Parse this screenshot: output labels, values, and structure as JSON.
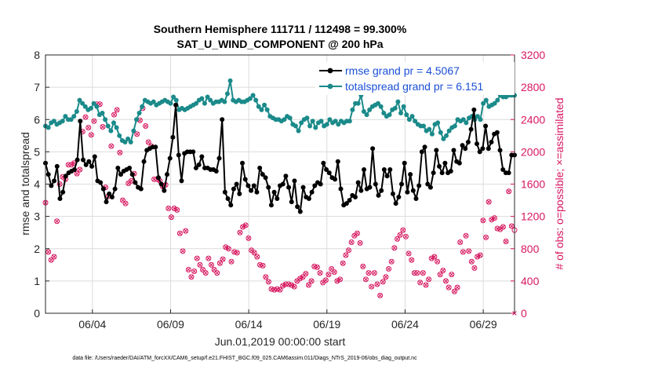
{
  "chart_data": {
    "type": "line",
    "title": "Southern Hemisphere 111711 / 112498 = 99.300%",
    "subtitle": "SAT_U_WIND_COMPONENT @ 200 hPa",
    "xlabel": "Jun.01,2019 00:00:00 start",
    "ylabel": "rmse and totalspread",
    "y2label": "# of obs: o=possible; ×=assimilated",
    "footnote": "data file: /Users/raeder/DAI/ATM_forcXX/CAM6_setup/f.e21.FHIST_BGC.f09_025.CAM6assim.011/Diags_NTrS_2019-06/obs_diag_output.nc",
    "x_tick_labels": [
      "06/04",
      "06/09",
      "06/14",
      "06/19",
      "06/24",
      "06/29"
    ],
    "x_tick_days": [
      4,
      9,
      14,
      19,
      24,
      29
    ],
    "xlim_days": [
      1,
      31
    ],
    "ylim": [
      0,
      8
    ],
    "yticks": [
      "0",
      "1",
      "2",
      "3",
      "4",
      "5",
      "6",
      "7",
      "8"
    ],
    "y2lim": [
      0,
      3200
    ],
    "y2ticks": [
      "0",
      "400",
      "800",
      "1200",
      "1600",
      "2000",
      "2400",
      "2800",
      "3200"
    ],
    "grid": true,
    "legend_placement": "top-right",
    "colors": {
      "rmse": "#000000",
      "totalspread": "#1b8a8a",
      "obs": "#d6175f",
      "legend_text": "#1a4fd6",
      "right_axis": "#d6175f"
    },
    "series": [
      {
        "name": "rmse grand pr = 4.5067",
        "color": "#000000",
        "values": [
          4.65,
          4.3,
          3.95,
          4.1,
          4.55,
          3.55,
          3.75,
          4.25,
          4.35,
          4.4,
          4.45,
          4.75,
          5.95,
          4.75,
          4.6,
          4.7,
          4.55,
          4.85,
          4.1,
          4.05,
          3.85,
          3.45,
          3.7,
          3.6,
          3.85,
          4.5,
          4.3,
          4.4,
          4.45,
          4.5,
          4.3,
          4.05,
          3.9,
          3.85,
          4.7,
          5.05,
          5.1,
          5.15,
          5.15,
          4.2,
          4.0,
          3.8,
          4.3,
          4.8,
          5.45,
          6.45,
          4.9,
          4.1,
          4.95,
          5.0,
          5.0,
          5.0,
          4.5,
          4.6,
          4.85,
          4.5,
          4.5,
          4.45,
          4.45,
          4.4,
          4.8,
          6.0,
          3.75,
          3.55,
          3.35,
          3.85,
          4.0,
          3.7,
          4.65,
          4.15,
          3.95,
          3.8,
          3.95,
          3.75,
          4.5,
          4.3,
          4.2,
          3.9,
          3.35,
          3.75,
          3.55,
          3.95,
          4.0,
          4.25,
          3.9,
          3.45,
          4.1,
          3.3,
          3.15,
          3.9,
          3.6,
          3.55,
          3.75,
          3.95,
          4.05,
          4.0,
          4.65,
          4.45,
          4.35,
          4.2,
          4.15,
          4.7,
          3.85,
          3.35,
          3.4,
          3.5,
          3.65,
          3.6,
          4.05,
          3.8,
          4.45,
          3.85,
          3.9,
          5.1,
          4.0,
          3.65,
          3.8,
          4.45,
          4.25,
          4.45,
          3.7,
          3.4,
          3.6,
          4.0,
          4.65,
          3.75,
          4.3,
          3.8,
          3.55,
          3.95,
          5.0,
          5.15,
          4.0,
          3.9,
          4.35,
          5.05,
          4.55,
          4.35,
          4.65,
          4.35,
          4.4,
          5.05,
          4.7,
          4.65,
          5.2,
          5.1,
          5.3,
          5.7,
          6.3,
          5.25,
          5.0,
          5.1,
          5.8,
          5.1,
          5.3,
          5.55,
          5.6,
          5.05,
          4.45,
          4.35,
          4.35,
          4.9,
          4.9
        ]
      },
      {
        "name": "totalspread grand pr = 6.151",
        "color": "#1b8a8a",
        "values": [
          5.8,
          5.75,
          5.9,
          5.95,
          5.85,
          5.9,
          5.95,
          6.1,
          6.0,
          6.0,
          6.1,
          6.25,
          6.6,
          6.5,
          6.4,
          6.3,
          6.35,
          6.5,
          6.4,
          6.15,
          6.2,
          6.0,
          5.8,
          5.65,
          5.9,
          5.75,
          5.5,
          5.35,
          5.3,
          5.4,
          5.3,
          5.65,
          6.0,
          6.2,
          6.4,
          6.6,
          6.55,
          6.5,
          6.55,
          6.45,
          6.5,
          6.55,
          6.6,
          6.55,
          6.5,
          6.7,
          6.6,
          6.3,
          6.35,
          6.3,
          6.35,
          6.4,
          6.45,
          6.5,
          6.6,
          6.65,
          6.5,
          6.7,
          6.6,
          6.5,
          6.55,
          6.55,
          6.6,
          6.55,
          6.8,
          7.2,
          6.6,
          6.55,
          6.6,
          6.55,
          6.55,
          6.6,
          6.65,
          6.75,
          6.6,
          6.4,
          6.3,
          6.45,
          6.3,
          6.1,
          6.05,
          6.0,
          6.0,
          5.95,
          6.0,
          6.1,
          6.05,
          5.85,
          5.8,
          5.65,
          5.9,
          6.0,
          6.05,
          5.8,
          5.95,
          5.75,
          5.9,
          5.95,
          5.8,
          5.85,
          6.0,
          5.9,
          5.95,
          5.85,
          5.95,
          5.9,
          5.95,
          5.95,
          6.3,
          6.5,
          6.5,
          6.75,
          6.25,
          6.15,
          6.3,
          6.4,
          6.45,
          6.5,
          6.4,
          6.2,
          6.1,
          6.15,
          6.3,
          6.35,
          6.55,
          6.2,
          6.4,
          6.15,
          6.0,
          6.1,
          5.95,
          5.85,
          5.8,
          5.8,
          5.65,
          5.7,
          5.55,
          5.85,
          5.9,
          5.6,
          5.4,
          5.5,
          5.65,
          5.75,
          5.8,
          6.0,
          5.95,
          6.0,
          5.9,
          6.05,
          6.1,
          6.0,
          6.1,
          6.0,
          6.5,
          6.6,
          6.4,
          6.45,
          6.5,
          6.6,
          6.75,
          6.7,
          6.7,
          6.75,
          6.75,
          6.75
        ]
      },
      {
        "name": "possible",
        "color": "#d6175f",
        "axis": "right",
        "values": [
          1370,
          760,
          660,
          700,
          1140,
          1600,
          1690,
          1660,
          1840,
          1840,
          1860,
          1730,
          1780,
          2250,
          2430,
          2300,
          2210,
          2380,
          2590,
          2590,
          2310,
          1560,
          1450,
          2070,
          2460,
          2520,
          1990,
          1400,
          1360,
          1610,
          1640,
          1730,
          2220,
          2390,
          2540,
          2320,
          2120,
          2070,
          1660,
          1660,
          1640,
          1570,
          1590,
          1300,
          1190,
          1300,
          1280,
          990,
          770,
          1020,
          540,
          450,
          520,
          680,
          600,
          540,
          500,
          680,
          600,
          540,
          500,
          620,
          670,
          820,
          800,
          640,
          760,
          750,
          1000,
          1070,
          1090,
          930,
          780,
          750,
          700,
          600,
          590,
          450,
          390,
          300,
          290,
          300,
          290,
          340,
          360,
          360,
          350,
          330,
          400,
          430,
          450,
          490,
          350,
          400,
          580,
          570,
          500,
          380,
          410,
          480,
          550,
          510,
          400,
          420,
          620,
          720,
          780,
          880,
          960,
          990,
          870,
          580,
          420,
          500,
          330,
          500,
          360,
          220,
          390,
          450,
          550,
          640,
          810,
          920,
          970,
          1030,
          950,
          740,
          660,
          500,
          500,
          380,
          500,
          350,
          420,
          680,
          700,
          640,
          480,
          530,
          400,
          320,
          480,
          270,
          320,
          880,
          760,
          960,
          770,
          640,
          560,
          700,
          720,
          1150,
          940,
          1380,
          1160,
          1180,
          1050,
          1040,
          1070,
          890,
          1510,
          1080,
          1030
        ]
      },
      {
        "name": "assimilated",
        "color": "#d6175f",
        "axis": "right",
        "values": [
          1370,
          760,
          660,
          700,
          1140,
          1600,
          1690,
          1660,
          1840,
          1840,
          1860,
          1730,
          1780,
          2250,
          2430,
          2300,
          2210,
          2380,
          2590,
          2590,
          2310,
          1560,
          1450,
          2070,
          2460,
          2520,
          1990,
          1400,
          1360,
          1610,
          1640,
          1730,
          2220,
          2390,
          2540,
          2320,
          2120,
          2070,
          1660,
          1660,
          1640,
          1570,
          1590,
          1300,
          1190,
          1300,
          1280,
          990,
          770,
          1020,
          540,
          450,
          520,
          680,
          600,
          540,
          500,
          680,
          600,
          540,
          500,
          620,
          670,
          820,
          800,
          640,
          760,
          750,
          1000,
          1070,
          1090,
          930,
          780,
          750,
          700,
          600,
          590,
          450,
          390,
          300,
          290,
          300,
          290,
          340,
          360,
          360,
          350,
          330,
          400,
          430,
          450,
          490,
          350,
          400,
          580,
          570,
          500,
          380,
          410,
          480,
          550,
          510,
          400,
          420,
          620,
          720,
          780,
          880,
          960,
          990,
          870,
          580,
          420,
          500,
          330,
          500,
          360,
          220,
          390,
          450,
          550,
          640,
          810,
          920,
          970,
          1030,
          950,
          740,
          660,
          500,
          500,
          380,
          500,
          350,
          420,
          680,
          700,
          640,
          480,
          530,
          400,
          320,
          480,
          270,
          320,
          880,
          760,
          960,
          770,
          640,
          560,
          700,
          720,
          1150,
          940,
          1380,
          1160,
          1180,
          1050,
          1040,
          1070,
          890,
          1510,
          1080,
          0
        ]
      }
    ]
  }
}
